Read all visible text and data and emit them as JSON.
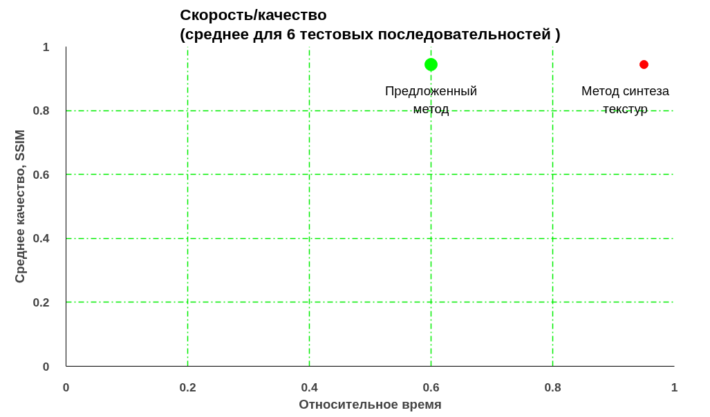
{
  "chart_data": {
    "type": "scatter",
    "title": "Скорость/качество\n(среднее для 6 тестовых последовательностей )",
    "xlabel": "Относительное время",
    "ylabel": "Среднее качество, SSIM",
    "series": [
      {
        "name": "Предложенный\nметод",
        "color": "#00ff00",
        "x": [
          0.6
        ],
        "values": [
          0.944
        ]
      },
      {
        "name": "Метод синтеза\nтекстур",
        "color": "#ff0000",
        "x": [
          0.95
        ],
        "values": [
          0.944
        ]
      }
    ],
    "xlim": [
      0,
      1
    ],
    "ylim": [
      0,
      1
    ],
    "xticks": [
      0,
      0.2,
      0.4,
      0.6,
      0.8,
      1
    ],
    "yticks": [
      0,
      0.2,
      0.4,
      0.6,
      0.8,
      1
    ],
    "grid": true,
    "marker": "circle"
  }
}
